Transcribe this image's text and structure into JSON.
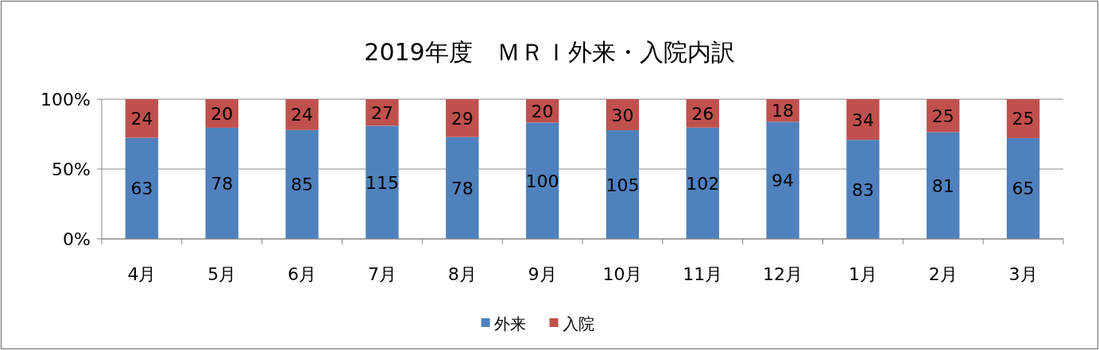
{
  "chart_data": {
    "type": "bar",
    "title": "2019年度　ＭＲＩ外来・入院内訳",
    "stacked": true,
    "categories": [
      "4月",
      "5月",
      "6月",
      "7月",
      "8月",
      "9月",
      "10月",
      "11月",
      "12月",
      "1月",
      "2月",
      "3月"
    ],
    "series": [
      {
        "name": "外来",
        "color": "#4f81bd",
        "values": [
          72.4,
          79.6,
          78.0,
          81.0,
          72.9,
          83.3,
          77.8,
          79.7,
          83.9,
          70.9,
          76.4,
          72.2
        ]
      },
      {
        "name": "入院",
        "color": "#c0504d",
        "values": [
          27.6,
          20.4,
          22.0,
          19.0,
          27.1,
          16.7,
          22.2,
          20.3,
          16.1,
          29.1,
          23.6,
          27.8
        ]
      }
    ],
    "annotations": [
      "63",
      "78",
      "85",
      "115",
      "78",
      "100",
      "105",
      "102",
      "94",
      "83",
      "81",
      "65",
      "24",
      "20",
      "24",
      "27",
      "29",
      "20",
      "30",
      "26",
      "18",
      "34",
      "25",
      "25"
    ],
    "ylim": [
      0,
      100
    ],
    "yticks": [
      {
        "value": 0,
        "label": "0%"
      },
      {
        "value": 50,
        "label": "50%"
      },
      {
        "value": 100,
        "label": "100%"
      }
    ],
    "grid": "y",
    "legend": "bottom"
  }
}
